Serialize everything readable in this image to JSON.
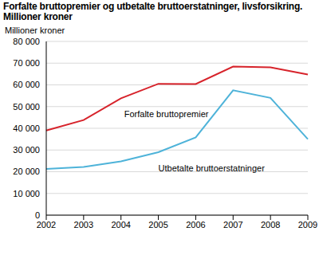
{
  "chart_data": {
    "type": "line",
    "title": "Forfalte bruttopremier og utbetalte bruttoerstatninger, livsforsikring. Millioner kroner",
    "y_label": "Millioner kroner",
    "categories": [
      "2002",
      "2003",
      "2004",
      "2005",
      "2006",
      "2007",
      "2008",
      "2009"
    ],
    "series": [
      {
        "name": "Forfalte bruttopremier",
        "color": "#d7232b",
        "values": [
          39000,
          43800,
          53800,
          60500,
          60400,
          68400,
          68100,
          64800
        ]
      },
      {
        "name": "Utbetalte bruttoerstatninger",
        "color": "#4eb3d9",
        "values": [
          21300,
          22200,
          24800,
          29000,
          35800,
          57500,
          54000,
          35000
        ]
      }
    ],
    "ylim": [
      0,
      80000
    ],
    "yticks": [
      0,
      {
        "value": 10000,
        "label": "10 000"
      },
      {
        "value": 20000,
        "label": "20 000"
      },
      {
        "value": 30000,
        "label": "30 000"
      },
      {
        "value": 40000,
        "label": "40 000"
      },
      {
        "value": 50000,
        "label": "50 000"
      },
      {
        "value": 60000,
        "label": "60 000"
      },
      {
        "value": 70000,
        "label": "70 000"
      },
      {
        "value": 80000,
        "label": "80 000"
      }
    ],
    "grid": true
  }
}
